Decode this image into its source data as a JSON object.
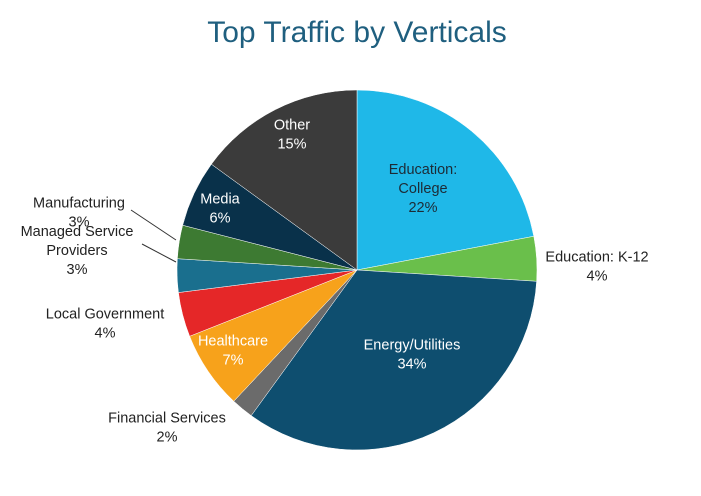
{
  "chart_data": {
    "type": "pie",
    "title": "Top Traffic by Verticals",
    "slices": [
      {
        "label": [
          "Education:",
          "College"
        ],
        "pct_label": "22%",
        "value": 22,
        "color": "#1fb8e8"
      },
      {
        "label": [
          "Education: K-12"
        ],
        "pct_label": "4%",
        "value": 4,
        "color": "#6abf4b"
      },
      {
        "label": [
          "Energy/Utilities"
        ],
        "pct_label": "34%",
        "value": 34,
        "color": "#0e4e6f"
      },
      {
        "label": [
          "Financial Services"
        ],
        "pct_label": "2%",
        "value": 2,
        "color": "#6b6b6b"
      },
      {
        "label": [
          "Healthcare"
        ],
        "pct_label": "7%",
        "value": 7,
        "color": "#f7a21b"
      },
      {
        "label": [
          "Local Government"
        ],
        "pct_label": "4%",
        "value": 4,
        "color": "#e52728"
      },
      {
        "label": [
          "Managed Service",
          "Providers"
        ],
        "pct_label": "3%",
        "value": 3,
        "color": "#1a6f8e"
      },
      {
        "label": [
          "Manufacturing"
        ],
        "pct_label": "3%",
        "value": 3,
        "color": "#3d7a32"
      },
      {
        "label": [
          "Media"
        ],
        "pct_label": "6%",
        "value": 6,
        "color": "#09314a"
      },
      {
        "label": [
          "Other"
        ],
        "pct_label": "15%",
        "value": 15,
        "color": "#3b3b3b"
      }
    ]
  }
}
